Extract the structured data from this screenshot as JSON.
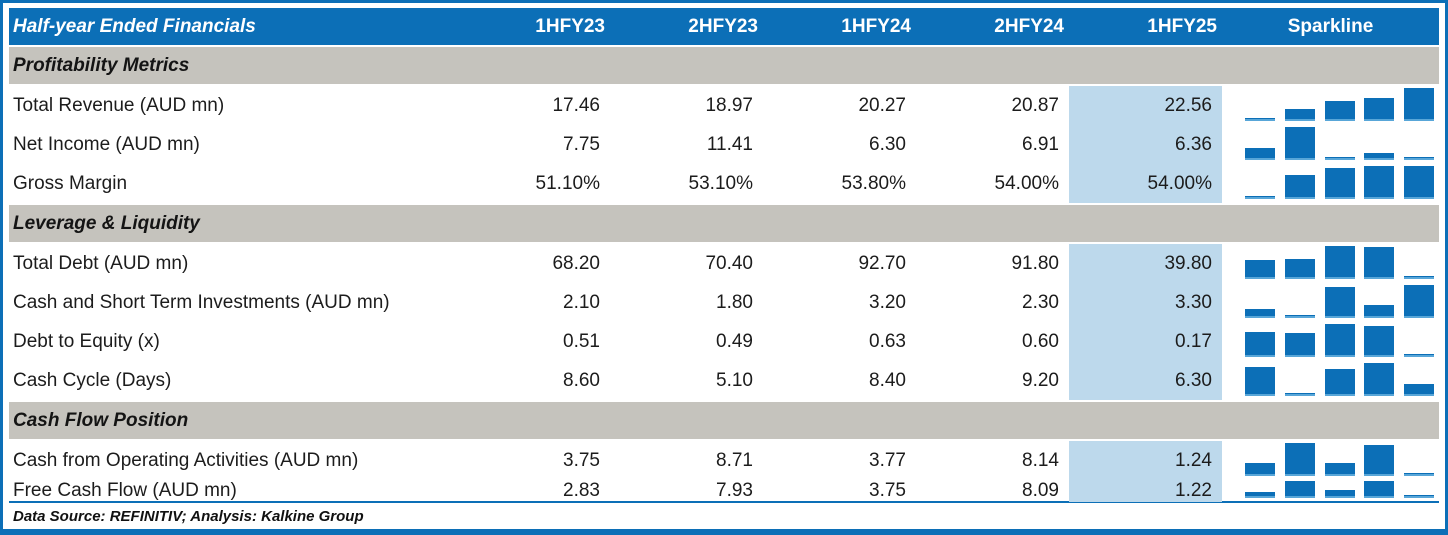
{
  "table": {
    "title": "Half-year Ended Financials",
    "columns": [
      "1HFY23",
      "2HFY23",
      "1HFY24",
      "2HFY24",
      "1HFY25"
    ],
    "sparkline_header": "Sparkline",
    "highlight_column": "1HFY25",
    "sections": [
      {
        "title": "Profitability Metrics",
        "rows": [
          {
            "label": "Total Revenue (AUD mn)",
            "values": [
              "17.46",
              "18.97",
              "20.27",
              "20.87",
              "22.56"
            ]
          },
          {
            "label": "Net Income (AUD mn)",
            "values": [
              "7.75",
              "11.41",
              "6.30",
              "6.91",
              "6.36"
            ]
          },
          {
            "label": "Gross Margin",
            "values": [
              "51.10%",
              "53.10%",
              "53.80%",
              "54.00%",
              "54.00%"
            ]
          }
        ]
      },
      {
        "title": "Leverage & Liquidity",
        "rows": [
          {
            "label": "Total Debt (AUD mn)",
            "values": [
              "68.20",
              "70.40",
              "92.70",
              "91.80",
              "39.80"
            ]
          },
          {
            "label": "Cash and Short Term Investments (AUD mn)",
            "values": [
              "2.10",
              "1.80",
              "3.20",
              "2.30",
              "3.30"
            ]
          },
          {
            "label": "Debt to Equity (x)",
            "values": [
              "0.51",
              "0.49",
              "0.63",
              "0.60",
              "0.17"
            ]
          },
          {
            "label": "Cash Cycle (Days)",
            "values": [
              "8.60",
              "5.10",
              "8.40",
              "9.20",
              "6.30"
            ]
          }
        ]
      },
      {
        "title": "Cash Flow Position",
        "rows": [
          {
            "label": "Cash from Operating Activities (AUD mn)",
            "values": [
              "3.75",
              "8.71",
              "3.77",
              "8.14",
              "1.24"
            ]
          },
          {
            "label": "Free Cash Flow (AUD mn)",
            "values": [
              "2.83",
              "7.93",
              "3.75",
              "8.09",
              "1.22"
            ]
          }
        ]
      }
    ]
  },
  "footer": {
    "note": "Data Source: REFINITIV; Analysis: Kalkine Group"
  },
  "colors": {
    "header_blue": "#0C6FB7",
    "section_gray": "#C5C3BD",
    "highlight_blue": "#BDD9EC",
    "sparkline_bar": "#0C6FB7",
    "sparkline_baseline": "#58A6D8"
  },
  "chart_data": {
    "type": "table",
    "title": "Half-year Ended Financials",
    "columns": [
      "1HFY23",
      "2HFY23",
      "1HFY24",
      "2HFY24",
      "1HFY25"
    ],
    "sparkline_type": "column, scaled min-to-max per row",
    "sections": [
      {
        "title": "Profitability Metrics",
        "rows": [
          {
            "label": "Total Revenue (AUD mn)",
            "values": [
              17.46,
              18.97,
              20.27,
              20.87,
              22.56
            ]
          },
          {
            "label": "Net Income (AUD mn)",
            "values": [
              7.75,
              11.41,
              6.3,
              6.91,
              6.36
            ]
          },
          {
            "label": "Gross Margin (%)",
            "values": [
              51.1,
              53.1,
              53.8,
              54.0,
              54.0
            ]
          }
        ]
      },
      {
        "title": "Leverage & Liquidity",
        "rows": [
          {
            "label": "Total Debt (AUD mn)",
            "values": [
              68.2,
              70.4,
              92.7,
              91.8,
              39.8
            ]
          },
          {
            "label": "Cash and Short Term Investments (AUD mn)",
            "values": [
              2.1,
              1.8,
              3.2,
              2.3,
              3.3
            ]
          },
          {
            "label": "Debt to Equity (x)",
            "values": [
              0.51,
              0.49,
              0.63,
              0.6,
              0.17
            ]
          },
          {
            "label": "Cash Cycle (Days)",
            "values": [
              8.6,
              5.1,
              8.4,
              9.2,
              6.3
            ]
          }
        ]
      },
      {
        "title": "Cash Flow Position",
        "rows": [
          {
            "label": "Cash from Operating Activities (AUD mn)",
            "values": [
              3.75,
              8.71,
              3.77,
              8.14,
              1.24
            ]
          },
          {
            "label": "Free Cash Flow (AUD mn)",
            "values": [
              2.83,
              7.93,
              3.75,
              8.09,
              1.22
            ]
          }
        ]
      }
    ]
  }
}
